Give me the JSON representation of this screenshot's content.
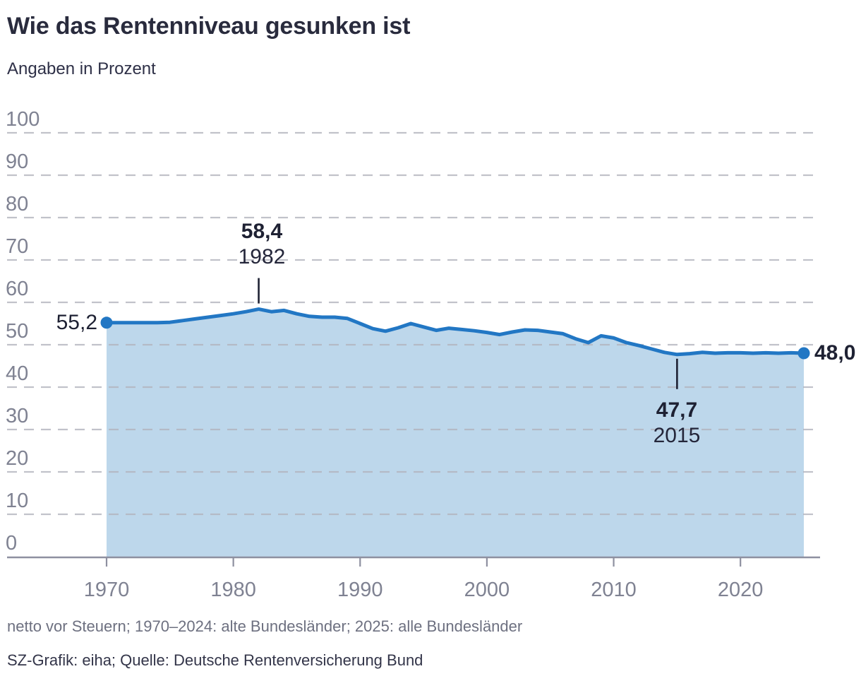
{
  "header": {
    "title": "Wie das Rentenniveau gesunken ist",
    "subtitle": "Angaben in Prozent"
  },
  "footer": {
    "note": "netto vor Steuern; 1970–2024: alte Bundesländer; 2025: alle Bundesländer",
    "source": "SZ-Grafik: eiha; Quelle: Deutsche Rentenversicherung Bund"
  },
  "chart_data": {
    "type": "area",
    "title": "Wie das Rentenniveau gesunken ist",
    "subtitle": "Angaben in Prozent",
    "xlabel": "",
    "ylabel": "Prozent",
    "x_range": [
      1970,
      2025
    ],
    "y_range": [
      0,
      100
    ],
    "xticks": [
      1970,
      1980,
      1990,
      2000,
      2010,
      2020
    ],
    "yticks": [
      0,
      10,
      20,
      30,
      40,
      50,
      60,
      70,
      80,
      90,
      100
    ],
    "grid": "dashed-horizontal",
    "legend": "none",
    "x": [
      1970,
      1971,
      1972,
      1973,
      1974,
      1975,
      1976,
      1977,
      1978,
      1979,
      1980,
      1981,
      1982,
      1983,
      1984,
      1985,
      1986,
      1987,
      1988,
      1989,
      1990,
      1991,
      1992,
      1993,
      1994,
      1995,
      1996,
      1997,
      1998,
      1999,
      2000,
      2001,
      2002,
      2003,
      2004,
      2005,
      2006,
      2007,
      2008,
      2009,
      2010,
      2011,
      2012,
      2013,
      2014,
      2015,
      2016,
      2017,
      2018,
      2019,
      2020,
      2021,
      2022,
      2023,
      2024,
      2025
    ],
    "series": [
      {
        "name": "Rentenniveau in Prozent",
        "values": [
          55.2,
          55.2,
          55.2,
          55.2,
          55.2,
          55.3,
          55.7,
          56.1,
          56.5,
          56.9,
          57.3,
          57.8,
          58.4,
          57.8,
          58.1,
          57.3,
          56.7,
          56.5,
          56.5,
          56.2,
          55.0,
          53.8,
          53.2,
          54.0,
          55.0,
          54.2,
          53.4,
          53.9,
          53.6,
          53.3,
          52.9,
          52.4,
          53.0,
          53.5,
          53.4,
          53.0,
          52.6,
          51.4,
          50.5,
          52.1,
          51.6,
          50.5,
          49.8,
          49.0,
          48.2,
          47.7,
          47.9,
          48.2,
          48.0,
          48.1,
          48.1,
          48.0,
          48.1,
          48.0,
          48.1,
          48.0
        ]
      }
    ],
    "annotations": [
      {
        "id": "start",
        "year": 1970,
        "value": 55.2,
        "value_label": "55,2"
      },
      {
        "id": "peak",
        "year": 1982,
        "value": 58.4,
        "value_label": "58,4",
        "year_label": "1982"
      },
      {
        "id": "trough",
        "year": 2015,
        "value": 47.7,
        "value_label": "47,7",
        "year_label": "2015"
      },
      {
        "id": "end",
        "year": 2025,
        "value": 48.0,
        "value_label": "48,0"
      }
    ],
    "colors": {
      "line": "#2277c4",
      "area": "#bdd7eb",
      "grid": "#b2b3bd",
      "axis": "#8e90a0",
      "tick_label": "#7f8292",
      "annotation": "#1e2133"
    }
  }
}
